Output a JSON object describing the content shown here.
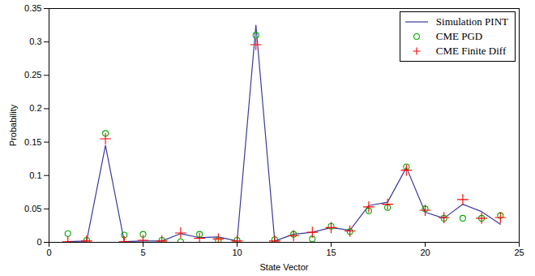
{
  "chart_data": {
    "type": "line",
    "x_label": "State Vector",
    "y_label": "Probability",
    "x": [
      1,
      2,
      3,
      4,
      5,
      6,
      7,
      8,
      9,
      10,
      11,
      12,
      13,
      14,
      15,
      16,
      17,
      18,
      19,
      20,
      21,
      22,
      23,
      24
    ],
    "series": [
      {
        "name": "Simulation PINT",
        "type": "line",
        "color": "#3a3a9e",
        "line_style": "solid",
        "values": [
          0.001,
          0.002,
          0.145,
          0.001,
          0.002,
          0.002,
          0.013,
          0.007,
          0.008,
          0.002,
          0.325,
          0.002,
          0.012,
          0.015,
          0.022,
          0.018,
          0.055,
          0.06,
          0.112,
          0.045,
          0.036,
          0.057,
          0.046,
          0.027
        ]
      },
      {
        "name": "CME PGD",
        "type": "scatter",
        "color": "#00aa00",
        "marker": "circle",
        "values": [
          0.013,
          0.003,
          0.163,
          0.011,
          0.012,
          0.003,
          0.001,
          0.012,
          0.003,
          0.003,
          0.31,
          0.004,
          0.012,
          0.005,
          0.024,
          0.016,
          0.047,
          0.052,
          0.113,
          0.05,
          0.036,
          0.036,
          0.036,
          0.04
        ]
      },
      {
        "name": "CME Finite Diff",
        "type": "scatter",
        "color": "#ff0000",
        "marker": "plus",
        "values": [
          0.001,
          0.002,
          0.155,
          0.001,
          0.003,
          0.002,
          0.014,
          0.006,
          0.005,
          0.002,
          0.296,
          0.002,
          0.01,
          0.015,
          0.022,
          0.017,
          0.053,
          0.057,
          0.108,
          0.048,
          0.037,
          0.064,
          0.036,
          0.037
        ]
      }
    ],
    "xlim": [
      0,
      25
    ],
    "xticks": [
      0,
      5,
      10,
      15,
      20,
      25
    ],
    "ylim": [
      0,
      0.35
    ],
    "yticks": [
      0,
      0.05,
      0.1,
      0.15,
      0.2,
      0.25,
      0.3,
      0.35
    ],
    "grid": false,
    "legend": "top-right"
  }
}
